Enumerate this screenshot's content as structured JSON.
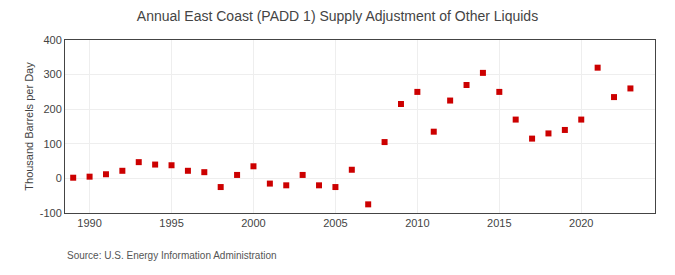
{
  "chart_data": {
    "type": "scatter",
    "title": "Annual East Coast (PADD 1) Supply Adjustment of Other Liquids",
    "ylabel": "Thousand Barrels per Day",
    "annotations": [
      "Source: U.S. Energy Information Administration"
    ],
    "x": [
      1989,
      1990,
      1991,
      1992,
      1993,
      1994,
      1995,
      1996,
      1997,
      1998,
      1999,
      2000,
      2001,
      2002,
      2003,
      2004,
      2005,
      2006,
      2007,
      2008,
      2009,
      2010,
      2011,
      2012,
      2013,
      2014,
      2015,
      2016,
      2017,
      2018,
      2019,
      2020,
      2021,
      2022,
      2023
    ],
    "values": [
      2,
      5,
      12,
      22,
      47,
      40,
      38,
      22,
      18,
      -25,
      10,
      35,
      -15,
      -20,
      10,
      -20,
      -25,
      25,
      -75,
      105,
      215,
      250,
      135,
      225,
      270,
      305,
      250,
      170,
      115,
      130,
      140,
      170,
      320,
      235,
      260
    ],
    "color": "#cc0000",
    "marker": "square",
    "xlim": [
      1988.5,
      2024.5
    ],
    "ylim": [
      -100,
      400
    ],
    "xticks": [
      1990,
      1995,
      2000,
      2005,
      2010,
      2015,
      2020
    ],
    "yticks": [
      -100,
      0,
      100,
      200,
      300,
      400
    ],
    "grid": true
  }
}
